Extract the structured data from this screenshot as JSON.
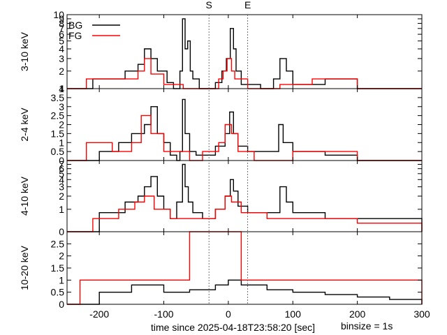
{
  "chart_data": {
    "type": "line",
    "layout": "4 stacked light-curve panels sharing the time axis",
    "xlabel": "time since 2025-04-18T23:58:20 [sec]",
    "binsize_label": "binsize = 1s",
    "xlim": [
      -250,
      300
    ],
    "x_ticks": [
      -200,
      -100,
      0,
      100,
      200,
      300
    ],
    "markers": [
      {
        "label": "S",
        "x": -30
      },
      {
        "label": "E",
        "x": 30
      }
    ],
    "legend": {
      "position": "top-left",
      "entries": [
        {
          "name": "BG",
          "color": "#000000"
        },
        {
          "name": "FG",
          "color": "#ff0000"
        }
      ]
    },
    "panels": [
      {
        "ylabel": "3-10 keV",
        "ylim": [
          1,
          10
        ],
        "log_y": true,
        "y_ticks": [
          1,
          2,
          3,
          4,
          5,
          6,
          7,
          8,
          9,
          10
        ],
        "series": [
          {
            "name": "BG",
            "color": "#000000",
            "points": [
              [
                -250,
                1
              ],
              [
                -210,
                1.5
              ],
              [
                -160,
                2
              ],
              [
                -140,
                2.5
              ],
              [
                -130,
                4
              ],
              [
                -120,
                3
              ],
              [
                -110,
                2
              ],
              [
                -95,
                1.3
              ],
              [
                -85,
                1
              ],
              [
                -75,
                2
              ],
              [
                -71,
                9
              ],
              [
                -67,
                4
              ],
              [
                -63,
                5
              ],
              [
                -59,
                2
              ],
              [
                -55,
                1.5
              ],
              [
                -45,
                1
              ],
              [
                -20,
                1.3
              ],
              [
                -10,
                2
              ],
              [
                -3,
                3
              ],
              [
                3,
                7
              ],
              [
                8,
                4
              ],
              [
                12,
                2
              ],
              [
                20,
                1.2
              ],
              [
                50,
                1
              ],
              [
                70,
                1.5
              ],
              [
                80,
                3
              ],
              [
                90,
                2
              ],
              [
                100,
                1.2
              ],
              [
                150,
                1.5
              ],
              [
                200,
                1
              ],
              [
                300,
                1
              ]
            ]
          },
          {
            "name": "FG",
            "color": "#ff0000",
            "points": [
              [
                -250,
                1
              ],
              [
                -220,
                1.5
              ],
              [
                -170,
                1.5
              ],
              [
                -140,
                2
              ],
              [
                -130,
                3
              ],
              [
                -120,
                1.8
              ],
              [
                -100,
                1.2
              ],
              [
                -70,
                1
              ],
              [
                -40,
                1
              ],
              [
                -15,
                1.5
              ],
              [
                -8,
                2
              ],
              [
                -2,
                3
              ],
              [
                5,
                2
              ],
              [
                10,
                1.5
              ],
              [
                30,
                1
              ],
              [
                80,
                1.2
              ],
              [
                130,
                1.5
              ],
              [
                200,
                1
              ],
              [
                300,
                1
              ]
            ]
          }
        ]
      },
      {
        "ylabel": "2-4 keV",
        "ylim": [
          0,
          4
        ],
        "log_y": false,
        "y_ticks": [
          0,
          0.5,
          1,
          1.5,
          2,
          2.5,
          3,
          3.5,
          4
        ],
        "series": [
          {
            "name": "BG",
            "color": "#000000",
            "points": [
              [
                -250,
                0
              ],
              [
                -200,
                0.5
              ],
              [
                -170,
                1
              ],
              [
                -150,
                1.5
              ],
              [
                -130,
                2
              ],
              [
                -120,
                3
              ],
              [
                -110,
                1.5
              ],
              [
                -100,
                1
              ],
              [
                -90,
                0.3
              ],
              [
                -80,
                0
              ],
              [
                -75,
                0.5
              ],
              [
                -71,
                3.4
              ],
              [
                -67,
                1.5
              ],
              [
                -60,
                0.5
              ],
              [
                -50,
                0.3
              ],
              [
                -20,
                0.8
              ],
              [
                -5,
                1.5
              ],
              [
                2,
                2.7
              ],
              [
                8,
                1.5
              ],
              [
                15,
                0.8
              ],
              [
                30,
                0.5
              ],
              [
                60,
                0.5
              ],
              [
                78,
                2
              ],
              [
                85,
                1
              ],
              [
                100,
                0.5
              ],
              [
                150,
                0.3
              ],
              [
                200,
                0
              ],
              [
                300,
                0
              ]
            ]
          },
          {
            "name": "FG",
            "color": "#ff0000",
            "points": [
              [
                -250,
                0
              ],
              [
                -220,
                1
              ],
              [
                -180,
                0.5
              ],
              [
                -150,
                1
              ],
              [
                -135,
                2.5
              ],
              [
                -120,
                1.5
              ],
              [
                -100,
                0.5
              ],
              [
                -60,
                0
              ],
              [
                -40,
                0.5
              ],
              [
                -15,
                1
              ],
              [
                -5,
                2
              ],
              [
                5,
                1.5
              ],
              [
                15,
                0.5
              ],
              [
                40,
                0
              ],
              [
                100,
                0.5
              ],
              [
                200,
                0
              ],
              [
                300,
                0
              ]
            ]
          }
        ]
      },
      {
        "ylabel": "4-10 keV",
        "ylim": [
          0,
          8
        ],
        "log_y": true,
        "y_ticks": [
          0,
          1,
          2,
          3,
          4,
          5,
          6,
          7
        ],
        "series": [
          {
            "name": "BG",
            "color": "#000000",
            "points": [
              [
                -250,
                0
              ],
              [
                -200,
                0.8
              ],
              [
                -160,
                1.5
              ],
              [
                -140,
                2
              ],
              [
                -130,
                3
              ],
              [
                -120,
                4.5
              ],
              [
                -110,
                2
              ],
              [
                -100,
                1
              ],
              [
                -90,
                0.5
              ],
              [
                -80,
                1.5
              ],
              [
                -71,
                7
              ],
              [
                -67,
                3
              ],
              [
                -62,
                1.5
              ],
              [
                -55,
                0.8
              ],
              [
                -40,
                0.5
              ],
              [
                -20,
                1
              ],
              [
                -5,
                2
              ],
              [
                3,
                4
              ],
              [
                8,
                2.5
              ],
              [
                15,
                1.2
              ],
              [
                30,
                0.8
              ],
              [
                60,
                0.8
              ],
              [
                80,
                3
              ],
              [
                90,
                1.5
              ],
              [
                100,
                0.8
              ],
              [
                150,
                0.5
              ],
              [
                200,
                0.5
              ],
              [
                300,
                0
              ]
            ]
          },
          {
            "name": "FG",
            "color": "#ff0000",
            "points": [
              [
                -250,
                0
              ],
              [
                -210,
                0.5
              ],
              [
                -170,
                1
              ],
              [
                -145,
                1.5
              ],
              [
                -130,
                2
              ],
              [
                -115,
                1
              ],
              [
                -90,
                0.5
              ],
              [
                -60,
                0.5
              ],
              [
                -20,
                1
              ],
              [
                -5,
                2
              ],
              [
                5,
                1.5
              ],
              [
                20,
                0.8
              ],
              [
                60,
                0.5
              ],
              [
                120,
                0.5
              ],
              [
                200,
                0.3
              ],
              [
                300,
                0
              ]
            ]
          }
        ]
      },
      {
        "ylabel": "10-20 keV",
        "ylim": [
          0,
          3
        ],
        "log_y": false,
        "y_ticks": [
          0,
          0.5,
          1,
          1.5,
          2,
          2.5
        ],
        "series": [
          {
            "name": "BG",
            "color": "#000000",
            "points": [
              [
                -250,
                0
              ],
              [
                -200,
                0.5
              ],
              [
                -150,
                0.8
              ],
              [
                -100,
                0.5
              ],
              [
                -60,
                0.6
              ],
              [
                -20,
                0.8
              ],
              [
                0,
                1
              ],
              [
                20,
                0.8
              ],
              [
                60,
                0.6
              ],
              [
                100,
                0.5
              ],
              [
                150,
                0.4
              ],
              [
                200,
                0.3
              ],
              [
                250,
                0.2
              ],
              [
                300,
                0
              ]
            ]
          },
          {
            "name": "FG",
            "color": "#ff0000",
            "points": [
              [
                -250,
                0
              ],
              [
                -230,
                1
              ],
              [
                -180,
                1
              ],
              [
                -150,
                1
              ],
              [
                -60,
                3
              ],
              [
                -5,
                3
              ],
              [
                20,
                1
              ],
              [
                50,
                1
              ],
              [
                100,
                1
              ],
              [
                150,
                1
              ],
              [
                200,
                1
              ],
              [
                250,
                1
              ],
              [
                300,
                0
              ]
            ]
          }
        ]
      }
    ]
  }
}
